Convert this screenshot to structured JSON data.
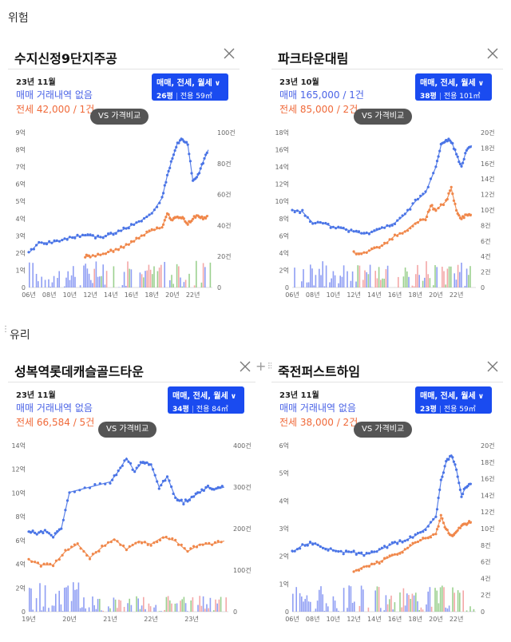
{
  "sections": {
    "danger_label": "위험",
    "glass_label": "유리"
  },
  "cards": [
    {
      "title": "수지신정9단지주공",
      "period": "23년 11월",
      "trade_text": "매매 거래내역 없음",
      "lease_text": "전세 42,000 / 1건",
      "select_types": "매매, 전세, 월세",
      "select_pyeong": "26평",
      "select_area": "전용 59㎡",
      "vs_label": "VS 가격비교",
      "chart_data": {
        "type": "line",
        "x_ticks": [
          "06년",
          "08년",
          "10년",
          "12년",
          "14년",
          "16년",
          "18년",
          "20년",
          "22년"
        ],
        "y_left_ticks": [
          "0",
          "1억",
          "2억",
          "3억",
          "4억",
          "5억",
          "6억",
          "7억",
          "8억",
          "9억"
        ],
        "y_left_range": [
          0,
          9
        ],
        "y_right_ticks": [
          "0",
          "20건",
          "40건",
          "60건",
          "80건",
          "100건"
        ],
        "y_right_range": [
          0,
          100
        ],
        "series": [
          {
            "color": "#4a74e6",
            "x": [
              2006,
              2007,
              2008,
              2009,
              2010,
              2011,
              2012,
              2013,
              2014,
              2015,
              2016,
              2017,
              2018,
              2019,
              2019.5,
              2020,
              2020.5,
              2021,
              2021.5,
              2022,
              2022.5,
              2023,
              2023.5
            ],
            "y": [
              2.0,
              2.6,
              2.6,
              2.7,
              2.9,
              3.0,
              3.0,
              2.9,
              3.1,
              3.3,
              3.6,
              3.9,
              4.3,
              5.2,
              6.5,
              7.5,
              8.4,
              8.6,
              8.3,
              6.2,
              6.5,
              7.3,
              8.0
            ]
          },
          {
            "color": "#f0874a",
            "x": [
              2011.5,
              2012,
              2013,
              2014,
              2015,
              2016,
              2017,
              2018,
              2019,
              2019.5,
              2020,
              2020.5,
              2021,
              2021.5,
              2022,
              2022.5,
              2023,
              2023.5
            ],
            "y": [
              1.8,
              1.8,
              1.9,
              2.1,
              2.3,
              2.6,
              3.0,
              3.3,
              3.5,
              4.3,
              3.9,
              4.1,
              4.0,
              3.7,
              4.0,
              4.2,
              4.0,
              4.2
            ]
          }
        ],
        "volume_colors": [
          "#6a7ef0",
          "#f08a8a",
          "#7ac06a"
        ]
      }
    },
    {
      "title": "파크타운대림",
      "period": "23년 10월",
      "trade_text": "매매 165,000 / 1건",
      "lease_text": "전세 85,000 / 2건",
      "select_types": "매매, 전세, 월세",
      "select_pyeong": "38평",
      "select_area": "전용 101㎡",
      "vs_label": "VS 가격비교",
      "chart_data": {
        "type": "line",
        "x_ticks": [
          "06년",
          "08년",
          "10년",
          "12년",
          "14년",
          "16년",
          "18년",
          "20년",
          "22년"
        ],
        "y_left_ticks": [
          "0",
          "2억",
          "4억",
          "6억",
          "8억",
          "10억",
          "12억",
          "14억",
          "16억",
          "18억"
        ],
        "y_left_range": [
          0,
          18
        ],
        "y_right_ticks": [
          "0",
          "2건",
          "4건",
          "6건",
          "8건",
          "10건",
          "12건",
          "14건",
          "16건",
          "18건",
          "20건"
        ],
        "y_right_range": [
          0,
          20
        ],
        "series": [
          {
            "color": "#4a74e6",
            "x": [
              2006,
              2007,
              2008,
              2009,
              2010,
              2011,
              2012,
              2013,
              2014,
              2015,
              2016,
              2017,
              2018,
              2019,
              2020,
              2020.5,
              2021,
              2021.5,
              2022,
              2022.5,
              2023,
              2023.5
            ],
            "y": [
              9.0,
              8.8,
              7.5,
              7.5,
              7.0,
              6.8,
              6.5,
              6.2,
              6.5,
              7.0,
              7.5,
              8.5,
              10.0,
              11.0,
              14.0,
              16.5,
              17.2,
              17.0,
              15.5,
              14.0,
              16.0,
              16.5
            ]
          },
          {
            "color": "#f0874a",
            "x": [
              2012,
              2013,
              2014,
              2015,
              2016,
              2017,
              2018,
              2019,
              2019.5,
              2020,
              2021,
              2021.5,
              2022,
              2022.5,
              2023,
              2023.5
            ],
            "y": [
              4.0,
              4.0,
              4.5,
              5.0,
              6.0,
              6.5,
              7.5,
              8.0,
              9.5,
              9.0,
              10.0,
              11.5,
              9.0,
              8.0,
              8.5,
              8.5
            ]
          }
        ],
        "volume_colors": [
          "#6a7ef0",
          "#f08a8a",
          "#7ac06a"
        ]
      }
    },
    {
      "title": "성복역롯데캐슬골드타운",
      "period": "23년 11월",
      "trade_text": "매매 거래내역 없음",
      "lease_text": "전세 66,584 / 5건",
      "select_types": "매매, 전세, 월세",
      "select_pyeong": "34평",
      "select_area": "전용 84㎡",
      "vs_label": "VS 가격비교",
      "chart_data": {
        "type": "line",
        "x_ticks": [
          "19년",
          "20년",
          "21년",
          "22년",
          "23년"
        ],
        "y_left_ticks": [
          "0",
          "2억",
          "4억",
          "6억",
          "8억",
          "10억",
          "12억",
          "14억"
        ],
        "y_left_range": [
          0,
          16
        ],
        "y_right_ticks": [
          "0",
          "100건",
          "200건",
          "300건",
          "400건"
        ],
        "y_right_range": [
          0,
          400
        ],
        "series": [
          {
            "color": "#4a74e6",
            "x": [
              2019,
              2019.2,
              2019.4,
              2019.6,
              2019.8,
              2020,
              2020.5,
              2021,
              2021.2,
              2021.4,
              2021.6,
              2021.8,
              2022,
              2022.2,
              2022.4,
              2022.6,
              2022.8,
              2023,
              2023.2,
              2023.4,
              2023.6,
              2023.8
            ],
            "y": [
              7.8,
              7.5,
              7.8,
              7.2,
              8.0,
              11.5,
              12.0,
              12.5,
              13.5,
              14.8,
              13.5,
              14.5,
              14.2,
              12.0,
              13.0,
              11.0,
              10.5,
              11.0,
              11.5,
              12.0,
              11.8,
              12.0
            ]
          },
          {
            "color": "#f0874a",
            "x": [
              2019,
              2019.3,
              2019.6,
              2019.9,
              2020.2,
              2020.5,
              2020.8,
              2021.1,
              2021.4,
              2021.7,
              2022,
              2022.3,
              2022.6,
              2022.9,
              2023.2,
              2023.5,
              2023.8
            ],
            "y": [
              5.0,
              4.5,
              4.5,
              5.8,
              6.5,
              5.2,
              6.2,
              7.0,
              6.0,
              6.8,
              6.5,
              7.2,
              6.8,
              5.8,
              6.5,
              6.5,
              6.8
            ]
          }
        ],
        "volume_colors": [
          "#6a7ef0",
          "#f08a8a",
          "#7ac06a"
        ]
      }
    },
    {
      "title": "죽전퍼스트하임",
      "period": "23년 11월",
      "trade_text": "매매 거래내역 없음",
      "lease_text": "전세 38,000 / 2건",
      "select_types": "매매, 전세, 월세",
      "select_pyeong": "23평",
      "select_area": "전용 59㎡",
      "vs_label": "VS 가격비교",
      "chart_data": {
        "type": "line",
        "x_ticks": [
          "06년",
          "08년",
          "10년",
          "12년",
          "14년",
          "16년",
          "18년",
          "20년",
          "22년"
        ],
        "y_left_ticks": [
          "0",
          "1억",
          "2억",
          "3억",
          "4억",
          "5억",
          "6억"
        ],
        "y_left_range": [
          0,
          7
        ],
        "y_right_ticks": [
          "0",
          "2건",
          "4건",
          "6건",
          "8건",
          "10건",
          "12건",
          "14건",
          "16건",
          "18건",
          "20건"
        ],
        "y_right_range": [
          0,
          20
        ],
        "series": [
          {
            "color": "#4a74e6",
            "x": [
              2006,
              2007,
              2008,
              2009,
              2010,
              2011,
              2012,
              2013,
              2014,
              2015,
              2016,
              2017,
              2018,
              2019,
              2020,
              2020.5,
              2021,
              2021.5,
              2022,
              2022.5,
              2023,
              2023.5
            ],
            "y": [
              2.5,
              2.8,
              2.9,
              2.7,
              2.6,
              2.5,
              2.5,
              2.4,
              2.5,
              2.7,
              2.9,
              3.0,
              3.2,
              3.5,
              4.0,
              5.5,
              6.3,
              6.6,
              6.0,
              4.9,
              5.3,
              5.4
            ]
          },
          {
            "color": "#f0874a",
            "x": [
              2012,
              2013,
              2014,
              2015,
              2016,
              2017,
              2018,
              2019,
              2020,
              2020.5,
              2021,
              2021.5,
              2022,
              2022.5,
              2023,
              2023.5
            ],
            "y": [
              1.7,
              1.9,
              2.0,
              2.2,
              2.4,
              2.6,
              2.9,
              3.1,
              3.3,
              4.0,
              3.5,
              3.2,
              3.4,
              3.6,
              3.7,
              3.8
            ]
          }
        ],
        "volume_colors": [
          "#6a7ef0",
          "#f08a8a",
          "#7ac06a"
        ]
      }
    }
  ]
}
